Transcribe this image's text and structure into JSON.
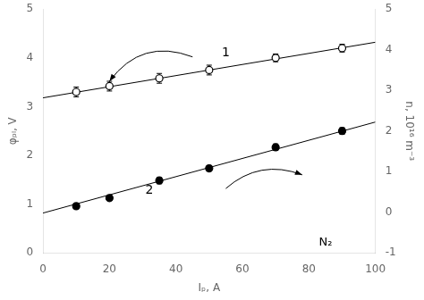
{
  "chart_data": {
    "type": "scatter",
    "xlabel": "Iₚ, A",
    "ylabel": "φₚₗ, V",
    "y2label": "n, 10¹⁶ m⁻³",
    "xlim": [
      0,
      100
    ],
    "xticks": [
      0,
      20,
      40,
      60,
      80,
      100
    ],
    "ylim": [
      0,
      5
    ],
    "yticks": [
      0,
      1,
      2,
      3,
      4,
      5
    ],
    "y2lim": [
      -1,
      5
    ],
    "y2ticks": [
      -1,
      0,
      1,
      2,
      3,
      4,
      5
    ],
    "grid": false,
    "series": [
      {
        "type": "line",
        "axis": "y",
        "color": "#000000",
        "line_style": "solid",
        "x": [
          0,
          100
        ],
        "values": [
          3.18,
          4.32
        ]
      },
      {
        "type": "scatter",
        "axis": "y",
        "color": "#000000",
        "marker": "open_circle",
        "x": [
          10,
          20,
          35,
          50,
          70,
          90
        ],
        "values": [
          3.3,
          3.42,
          3.58,
          3.75,
          4.0,
          4.2
        ],
        "errors": [
          0.1,
          0.1,
          0.1,
          0.1,
          0.08,
          0.08
        ]
      },
      {
        "type": "line",
        "axis": "y2",
        "color": "#000000",
        "line_style": "solid",
        "x": [
          0,
          100
        ],
        "values": [
          -0.02,
          2.22
        ]
      },
      {
        "type": "scatter",
        "axis": "y2",
        "color": "#000000",
        "marker": "filled_circle",
        "x": [
          10,
          20,
          35,
          50,
          70,
          90
        ],
        "values": [
          0.15,
          0.35,
          0.78,
          1.08,
          1.6,
          2.0
        ],
        "errors": [
          0.05,
          0.06,
          0.08,
          0.07,
          0.08,
          0.08
        ]
      }
    ],
    "annotations": [
      {
        "text": "1",
        "x": 55,
        "y": 4.1
      },
      {
        "text": "2",
        "x": 32,
        "y": 1.28
      },
      {
        "text": "N₂",
        "x": 85,
        "y": 0.22
      }
    ],
    "arrows": [
      {
        "x": 45,
        "y": 4.02,
        "to_x": 20,
        "to_y": 3.52
      },
      {
        "x": 55,
        "y": 1.32,
        "to_x": 78,
        "to_y": 1.6
      }
    ]
  }
}
